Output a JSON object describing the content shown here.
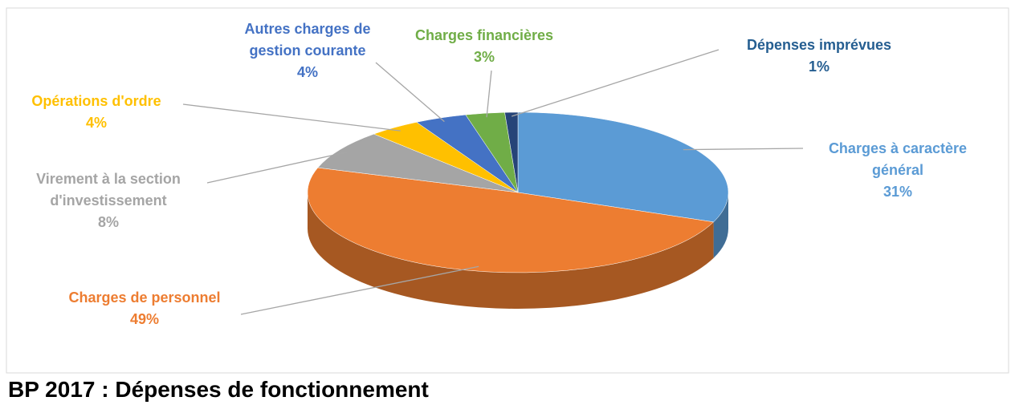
{
  "chart_data": {
    "type": "pie",
    "title": "BP 2017 : Dépenses de fonctionnement",
    "categories": [
      "Charges à caractère général",
      "Charges de personnel",
      "Virement à la section d'investissement",
      "Opérations d'ordre",
      "Autres charges de gestion courante",
      "Charges financières",
      "Dépenses imprévues"
    ],
    "values": [
      31,
      49,
      8,
      4,
      4,
      3,
      1
    ],
    "value_labels": [
      "31%",
      "49%",
      "8%",
      "4%",
      "4%",
      "3%",
      "1%"
    ],
    "colors": [
      "#5b9bd5",
      "#ed7d31",
      "#a5a5a5",
      "#ffc000",
      "#4472c4",
      "#70ad47",
      "#264478"
    ]
  }
}
